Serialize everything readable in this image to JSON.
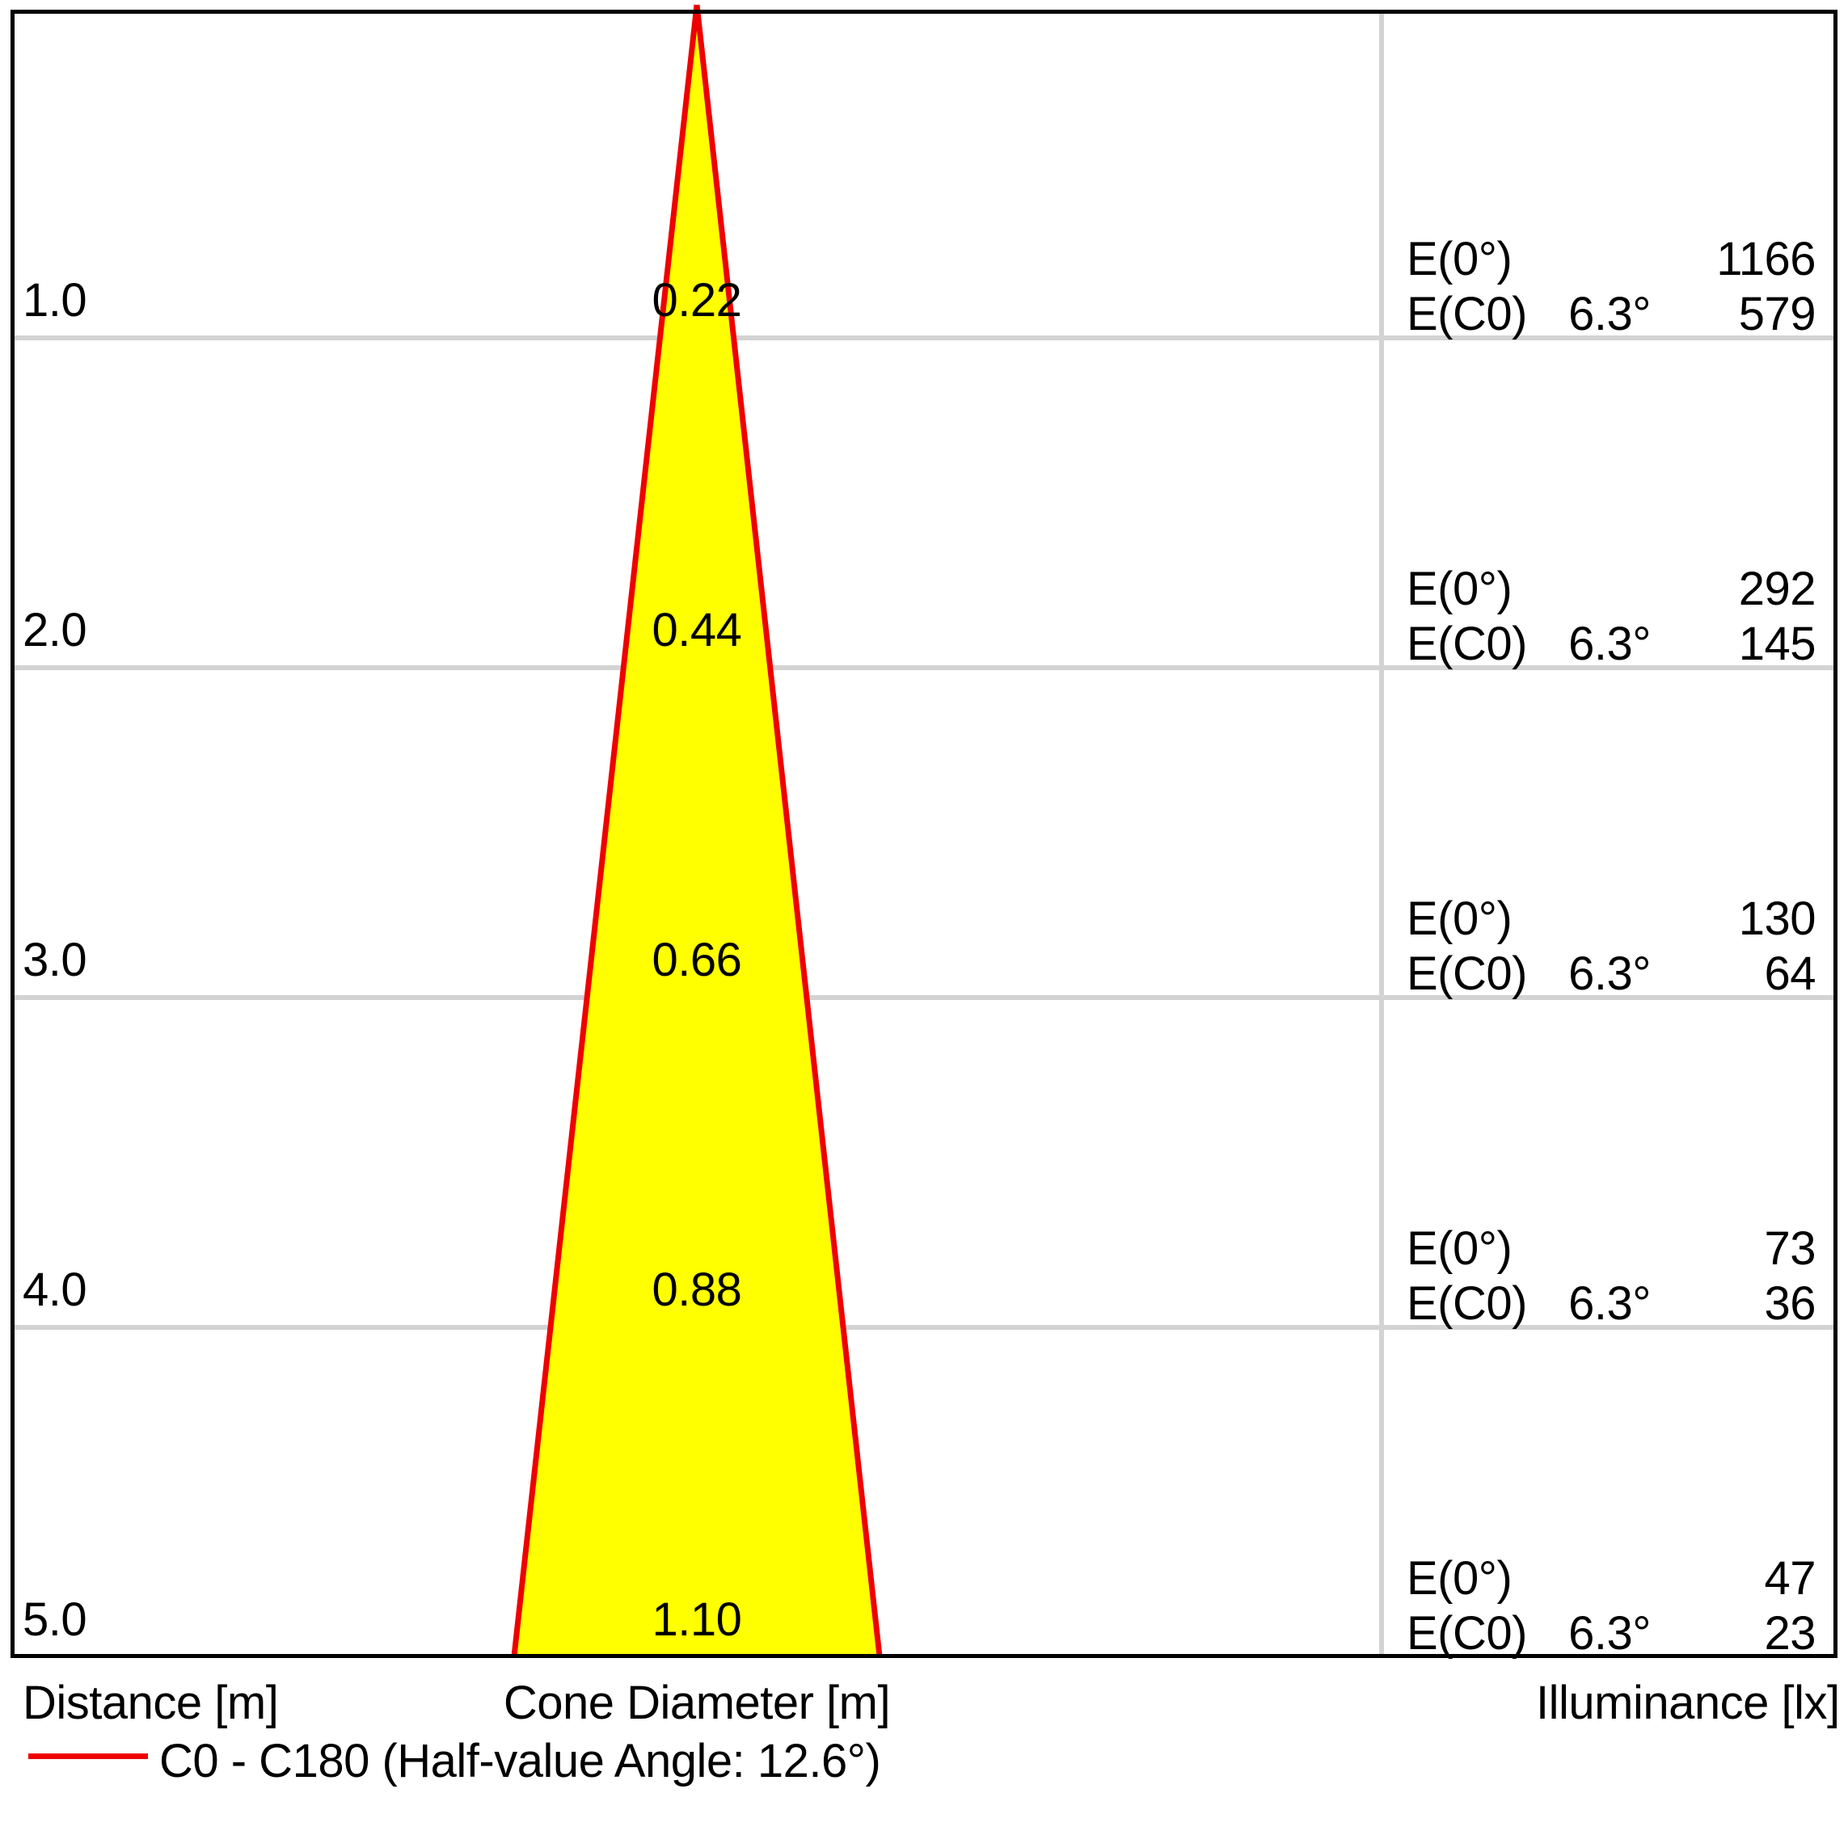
{
  "title": "Light cone diagram",
  "colors": {
    "cone-fill": "#ffff00",
    "cone-stroke": "#ee0000",
    "grid-line": "#d3d3d3",
    "frame": "#000000",
    "text": "#000000",
    "legend-line": "#ee0000"
  },
  "axis": {
    "distance_label": "Distance [m]",
    "cone_diameter_label": "Cone Diameter [m]",
    "illuminance_label": "Illuminance [lx]"
  },
  "legend": {
    "label": "C0 - C180 (Half-value Angle: 12.6°)"
  },
  "rows": [
    {
      "distance": "1.0",
      "diameter": "0.22",
      "e0_label": "E(0°)",
      "e0": "1166",
      "ec0_label": "E(C0)",
      "angle": "6.3°",
      "ec0": "579"
    },
    {
      "distance": "2.0",
      "diameter": "0.44",
      "e0_label": "E(0°)",
      "e0": "292",
      "ec0_label": "E(C0)",
      "angle": "6.3°",
      "ec0": "145"
    },
    {
      "distance": "3.0",
      "diameter": "0.66",
      "e0_label": "E(0°)",
      "e0": "130",
      "ec0_label": "E(C0)",
      "angle": "6.3°",
      "ec0": "64"
    },
    {
      "distance": "4.0",
      "diameter": "0.88",
      "e0_label": "E(0°)",
      "e0": "73",
      "ec0_label": "E(C0)",
      "angle": "6.3°",
      "ec0": "36"
    },
    {
      "distance": "5.0",
      "diameter": "1.10",
      "e0_label": "E(0°)",
      "e0": "47",
      "ec0_label": "E(C0)",
      "angle": "6.3°",
      "ec0": "23"
    }
  ],
  "chart_data": {
    "type": "table",
    "title": "Photometric light cone diagram",
    "columns": [
      "Distance [m]",
      "Cone Diameter [m]",
      "E(0°) [lx]",
      "E(C0) angle",
      "E(C0) [lx]"
    ],
    "distances_m": [
      1.0,
      2.0,
      3.0,
      4.0,
      5.0
    ],
    "cone_diameters_m": [
      0.22,
      0.44,
      0.66,
      0.88,
      1.1
    ],
    "illuminance_e0_lx": [
      1166,
      292,
      130,
      73,
      47
    ],
    "illuminance_ec0_lx": [
      579,
      145,
      64,
      36,
      23
    ],
    "ec0_angle_deg": 6.3,
    "half_value_angle_deg": 12.6,
    "legend": [
      "C0 - C180 (Half-value Angle: 12.6°)"
    ],
    "grid": true,
    "legend_position": "bottom-left",
    "cone_color": "#ffff00",
    "curve_color": "#ee0000"
  }
}
